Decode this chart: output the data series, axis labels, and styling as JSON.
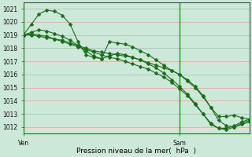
{
  "bg_color": "#cce8d8",
  "grid_color": "#e8a0a0",
  "line_color": "#1a6e1a",
  "marker": "D",
  "markersize": 2.5,
  "linewidth": 0.8,
  "ylabel_ticks": [
    1012,
    1013,
    1014,
    1015,
    1016,
    1017,
    1018,
    1019,
    1020,
    1021
  ],
  "ylim": [
    1011.5,
    1021.5
  ],
  "xlabel": "Pression niveau de la mer(  hPa  )",
  "tick_fontsize": 5.5,
  "xlabel_fontsize": 6.5,
  "series": [
    [
      1019.0,
      1019.8,
      1020.6,
      1020.9,
      1020.8,
      1020.5,
      1019.8,
      1018.5,
      1017.5,
      1017.3,
      1017.2,
      1018.5,
      1018.4,
      1018.3,
      1018.1,
      1017.8,
      1017.5,
      1017.1,
      1016.7,
      1016.3,
      1016.0,
      1015.5,
      1015.0,
      1014.3,
      1013.5,
      1012.8,
      1012.8,
      1012.9,
      1012.7,
      1012.6
    ],
    [
      1019.0,
      1019.1,
      1019.0,
      1018.9,
      1018.7,
      1018.6,
      1018.4,
      1018.2,
      1018.0,
      1017.8,
      1017.7,
      1017.6,
      1017.5,
      1017.4,
      1017.3,
      1017.1,
      1016.9,
      1016.7,
      1016.5,
      1016.3,
      1016.0,
      1015.6,
      1015.1,
      1014.4,
      1013.5,
      1012.5,
      1012.1,
      1012.0,
      1012.2,
      1012.4
    ],
    [
      1019.0,
      1019.0,
      1018.9,
      1018.8,
      1018.7,
      1018.5,
      1018.3,
      1018.1,
      1017.9,
      1017.7,
      1017.5,
      1017.3,
      1017.2,
      1017.0,
      1016.8,
      1016.6,
      1016.4,
      1016.1,
      1015.8,
      1015.4,
      1014.9,
      1014.4,
      1013.7,
      1013.0,
      1012.3,
      1011.9,
      1011.8,
      1012.0,
      1012.3,
      1012.5
    ],
    [
      1019.0,
      1019.2,
      1019.4,
      1019.3,
      1019.1,
      1018.9,
      1018.6,
      1018.2,
      1017.8,
      1017.4,
      1017.2,
      1017.4,
      1017.6,
      1017.5,
      1017.3,
      1017.1,
      1016.8,
      1016.5,
      1016.1,
      1015.6,
      1015.1,
      1014.5,
      1013.8,
      1013.0,
      1012.2,
      1011.9,
      1011.9,
      1012.1,
      1012.4,
      1012.6
    ]
  ],
  "n_points": 30,
  "ven_idx": 0,
  "sam_idx": 20,
  "vline_idx": 20
}
